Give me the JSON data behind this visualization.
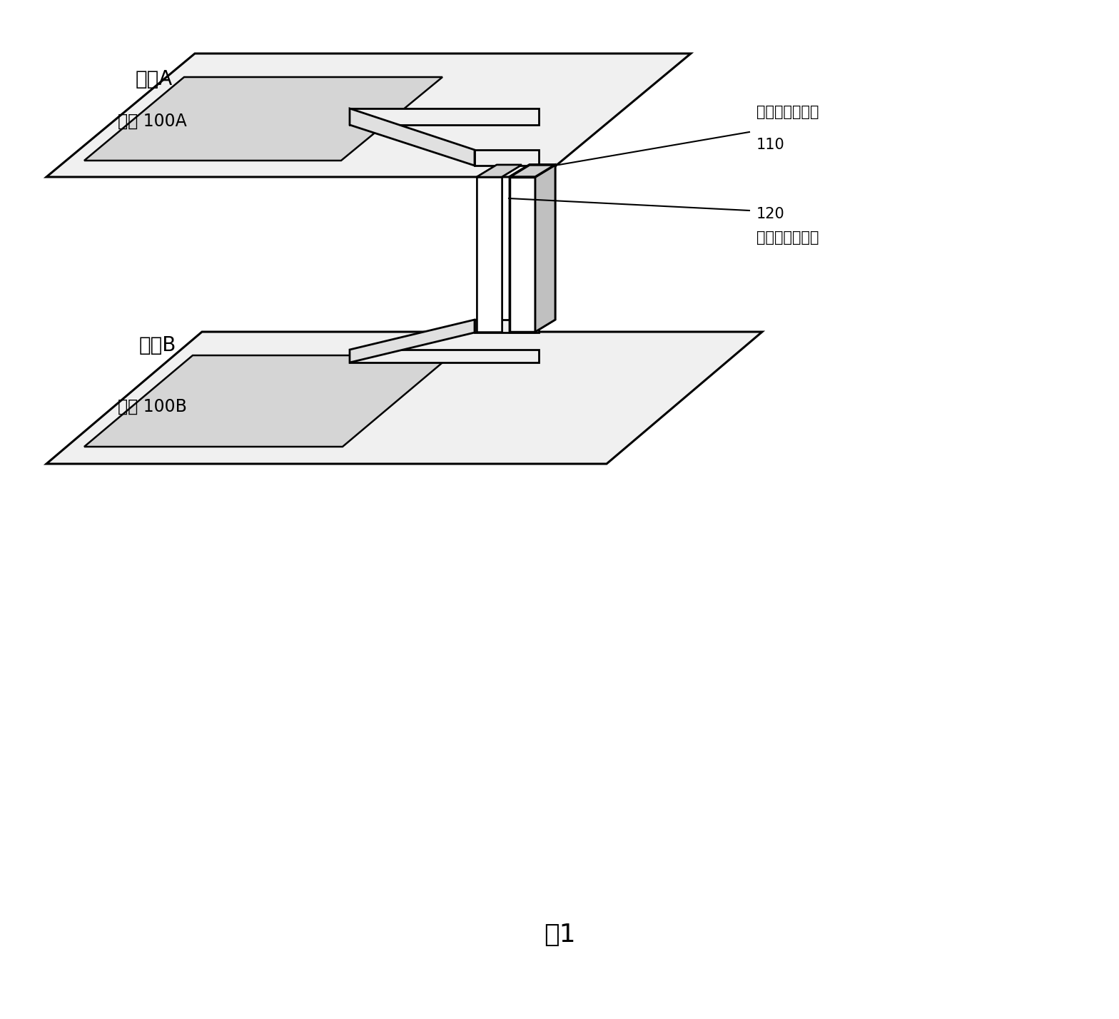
{
  "title": "图1",
  "title_fontsize": 26,
  "chip_a_label": "芯片A",
  "chip_b_label": "芯片B",
  "circuit_a_label": "电路 100A",
  "circuit_b_label": "电路 100B",
  "label_110": "110",
  "label_120": "120",
  "ann_110": "常备芯片间互连",
  "ann_120": "预备芯片间互连",
  "bg_color": "#ffffff",
  "chip_fc": "#f2f2f2",
  "circuit_fc": "#d8d8d8",
  "fin_fc": "#ffffff",
  "fin_top_fc": "#cccccc",
  "fin_side_fc": "#bbbbbb"
}
